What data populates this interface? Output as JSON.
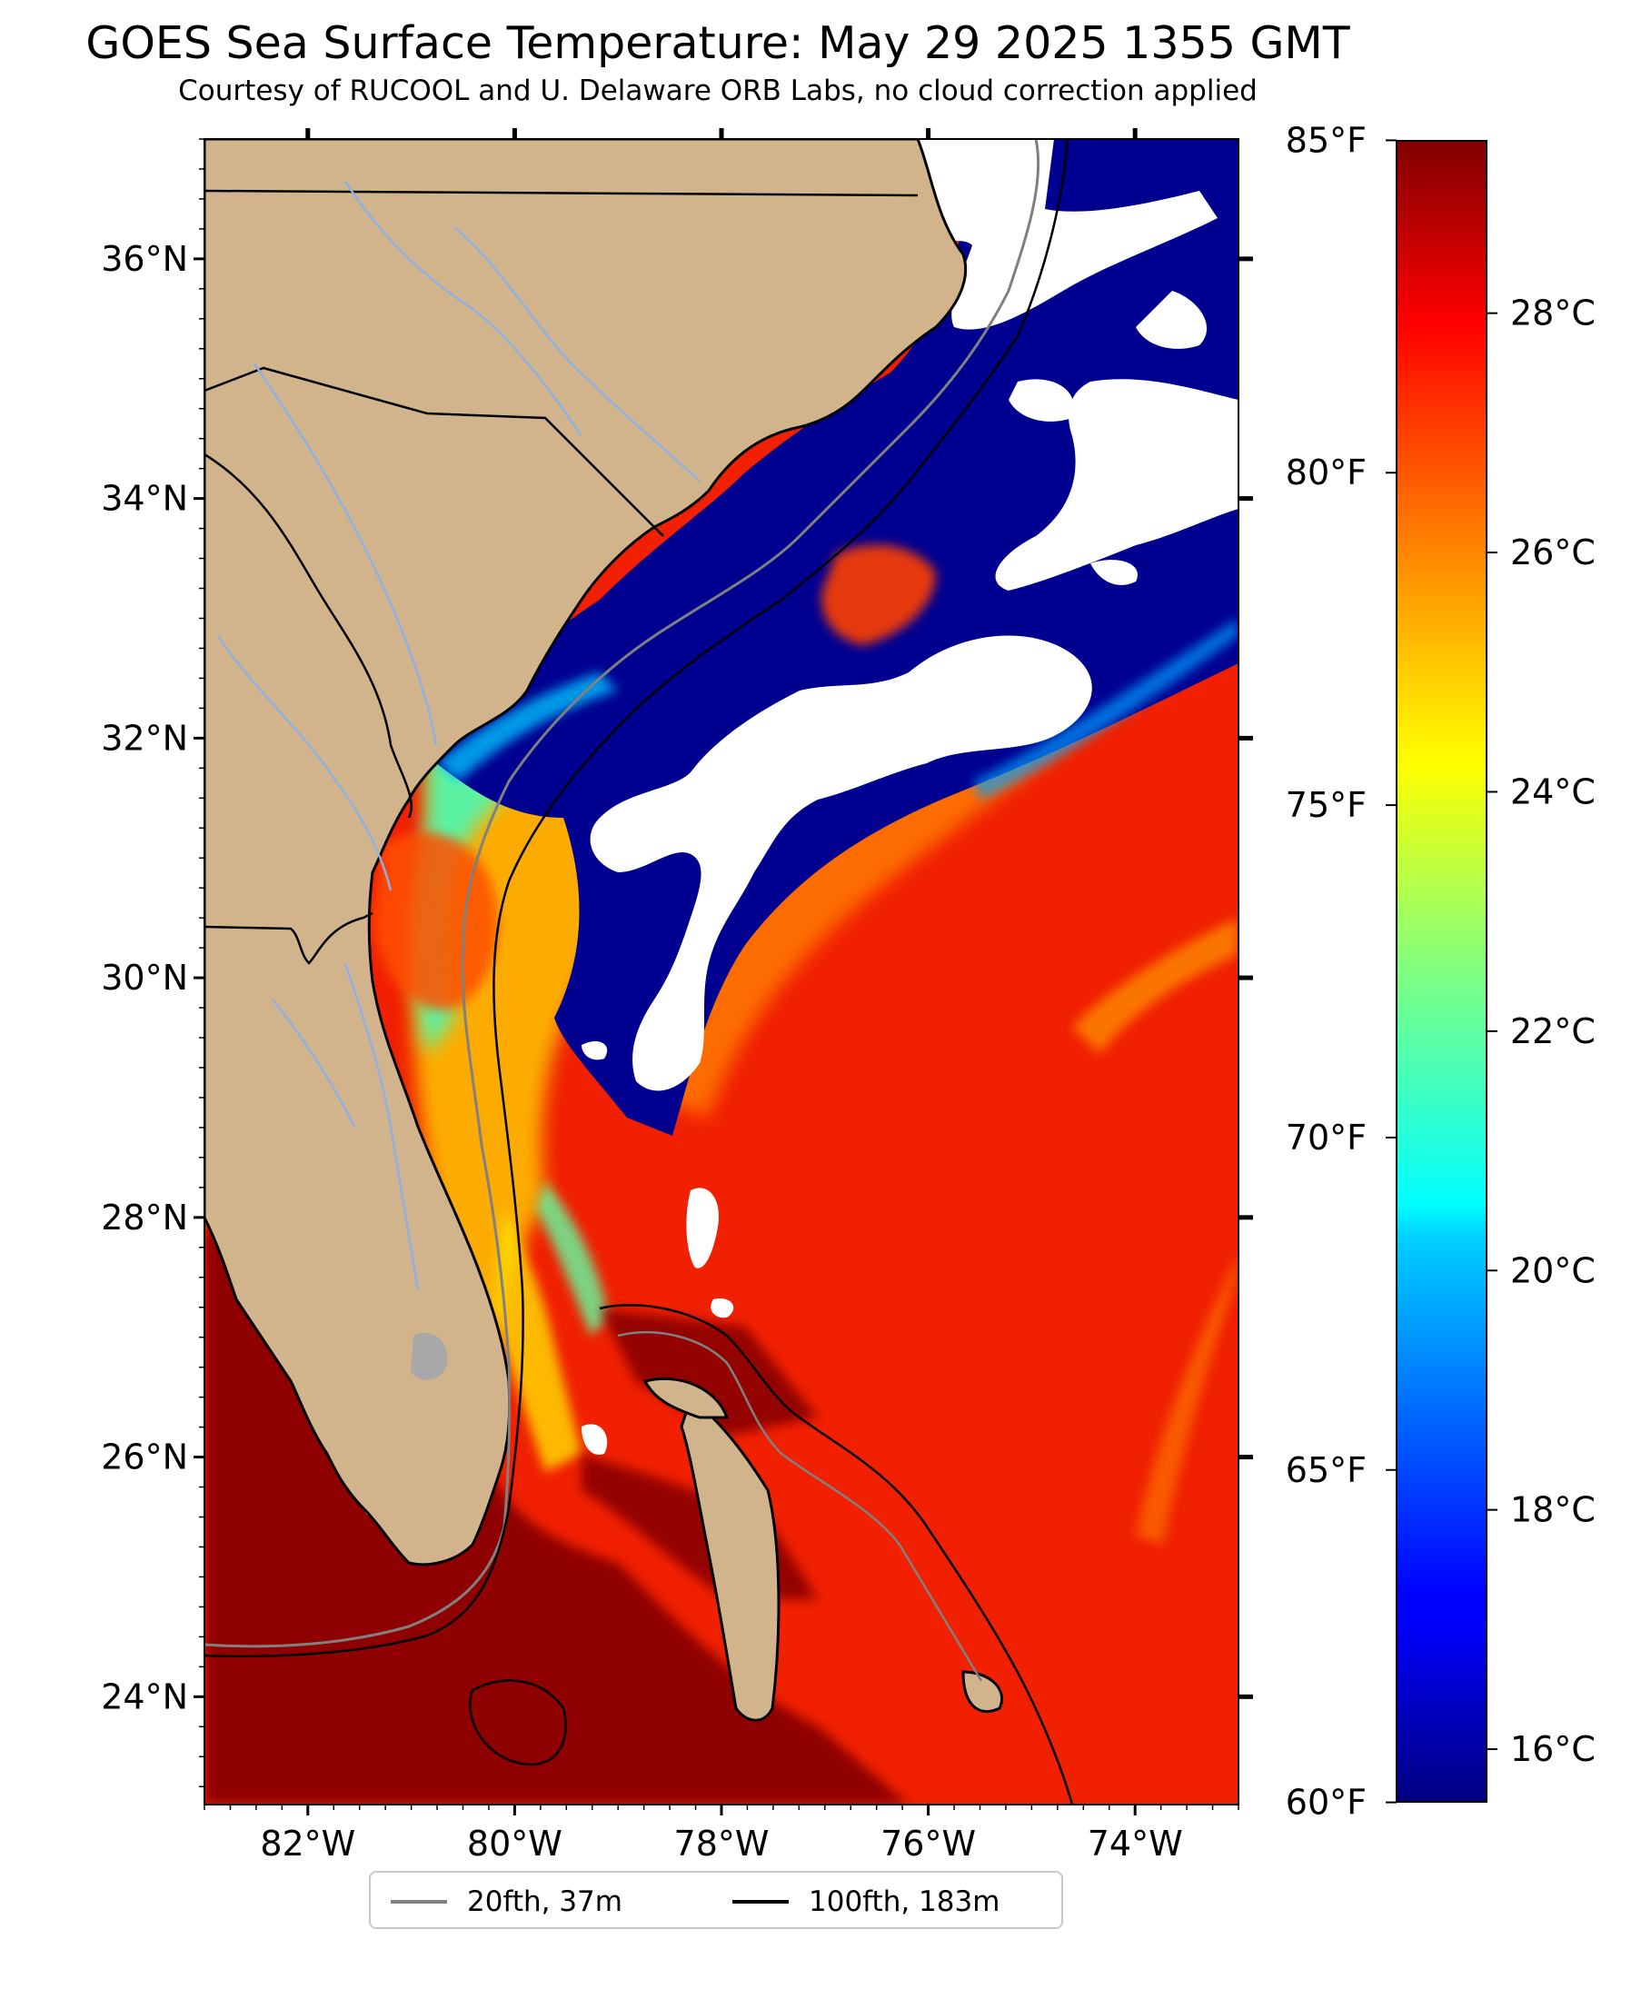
{
  "title": "GOES Sea Surface Temperature: May 29 2025 1355 GMT",
  "subtitle": "Courtesy of RUCOOL and U. Delaware ORB Labs, no cloud correction applied",
  "map": {
    "lon_range": [
      -83,
      -73
    ],
    "lat_range": [
      23.1,
      37
    ],
    "lon_ticks": [
      {
        "value": -82,
        "label": "82°W"
      },
      {
        "value": -80,
        "label": "80°W"
      },
      {
        "value": -78,
        "label": "78°W"
      },
      {
        "value": -76,
        "label": "76°W"
      },
      {
        "value": -74,
        "label": "74°W"
      }
    ],
    "lat_ticks": [
      {
        "value": 24,
        "label": "24°N"
      },
      {
        "value": 26,
        "label": "26°N"
      },
      {
        "value": 28,
        "label": "28°N"
      },
      {
        "value": 30,
        "label": "30°N"
      },
      {
        "value": 32,
        "label": "32°N"
      },
      {
        "value": 34,
        "label": "34°N"
      },
      {
        "value": 36,
        "label": "36°N"
      }
    ],
    "land_color": "#d2b48c",
    "cloud_color": "#ffffff",
    "cold_color": "#000080",
    "warm_color": "#e82000",
    "hot_color": "#800000"
  },
  "colorbar": {
    "celsius_range": [
      15.56,
      29.44
    ],
    "celsius_ticks": [
      {
        "value": 16,
        "label": "16°C"
      },
      {
        "value": 18,
        "label": "18°C"
      },
      {
        "value": 20,
        "label": "20°C"
      },
      {
        "value": 22,
        "label": "22°C"
      },
      {
        "value": 24,
        "label": "24°C"
      },
      {
        "value": 26,
        "label": "26°C"
      },
      {
        "value": 28,
        "label": "28°C"
      }
    ],
    "fahrenheit_ticks": [
      {
        "value": 60,
        "label": "60°F"
      },
      {
        "value": 65,
        "label": "65°F"
      },
      {
        "value": 70,
        "label": "70°F"
      },
      {
        "value": 75,
        "label": "75°F"
      },
      {
        "value": 80,
        "label": "80°F"
      },
      {
        "value": 85,
        "label": "85°F"
      }
    ],
    "colormap": "jet"
  },
  "legend": {
    "items": [
      {
        "label": "20fth, 37m",
        "color": "#808080"
      },
      {
        "label": "100fth, 183m",
        "color": "#000000"
      }
    ]
  }
}
